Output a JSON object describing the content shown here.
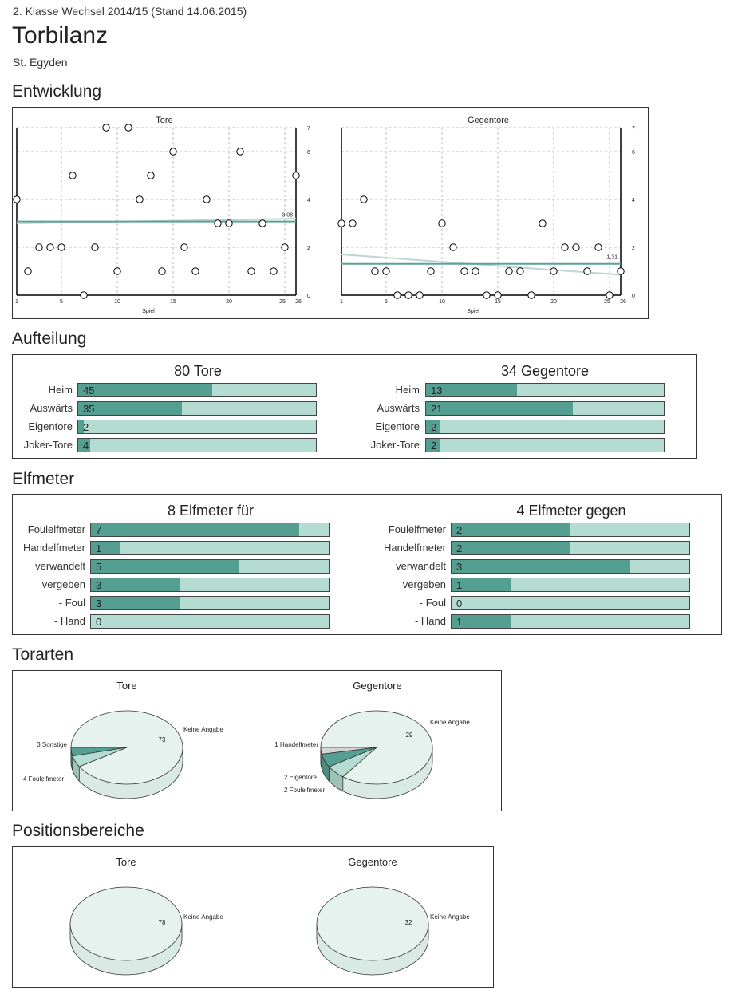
{
  "header": {
    "subtitle": "2. Klasse Wechsel 2014/15 (Stand 14.06.2015)",
    "title": "Torbilanz",
    "team": "St. Egyden"
  },
  "sections": {
    "entwicklung": "Entwicklung",
    "aufteilung": "Aufteilung",
    "elfmeter": "Elfmeter",
    "torarten": "Torarten",
    "positionsbereiche": "Positionsbereiche"
  },
  "colors": {
    "bar_fill": "#559e92",
    "bar_bg": "#b4dcd3",
    "pie_main": "#e6f2ee",
    "pie_dark": "#559e92",
    "pie_light": "#b4dcd3",
    "trend": "#5aa394",
    "regression": "#c0d4cf"
  },
  "chart_data": [
    {
      "type": "scatter",
      "id": "tore",
      "title": "Tore",
      "xlabel": "Spiel",
      "x_ticks": [
        "1",
        "5",
        "10",
        "15",
        "20",
        "25",
        "26"
      ],
      "y_ticks": [
        "0",
        "2",
        "4",
        "6",
        "7"
      ],
      "xlim": [
        1,
        26
      ],
      "ylim": [
        0,
        7
      ],
      "x": [
        1,
        2,
        3,
        4,
        5,
        6,
        7,
        8,
        9,
        10,
        11,
        12,
        13,
        14,
        15,
        16,
        17,
        18,
        19,
        20,
        21,
        22,
        23,
        24,
        25,
        26
      ],
      "values": [
        4,
        1,
        2,
        2,
        2,
        5,
        0,
        2,
        7,
        1,
        7,
        4,
        5,
        1,
        6,
        2,
        1,
        4,
        3,
        3,
        6,
        1,
        3,
        1,
        2,
        5
      ],
      "average": 3.08,
      "average_label": "3,08",
      "regression": [
        3.0,
        3.2
      ]
    },
    {
      "type": "scatter",
      "id": "gegentore",
      "title": "Gegentore",
      "xlabel": "Spiel",
      "x_ticks": [
        "1",
        "5",
        "10",
        "15",
        "20",
        "25",
        "26"
      ],
      "y_ticks": [
        "0",
        "2",
        "4",
        "6",
        "7"
      ],
      "xlim": [
        1,
        26
      ],
      "ylim": [
        0,
        7
      ],
      "x": [
        1,
        2,
        3,
        4,
        5,
        6,
        7,
        8,
        9,
        10,
        11,
        12,
        13,
        14,
        15,
        16,
        17,
        18,
        19,
        20,
        21,
        22,
        23,
        24,
        25,
        26
      ],
      "values": [
        3,
        3,
        4,
        1,
        1,
        0,
        0,
        0,
        1,
        3,
        2,
        1,
        1,
        0,
        0,
        1,
        1,
        0,
        3,
        1,
        2,
        2,
        1,
        2,
        0,
        1
      ],
      "average": 1.31,
      "average_label": "1,31",
      "regression": [
        1.7,
        0.85
      ]
    },
    {
      "type": "bar",
      "id": "tore-aufteilung",
      "title": "80 Tore",
      "categories": [
        "Heim",
        "Auswärts",
        "Eigentore",
        "Joker-Tore"
      ],
      "values": [
        45,
        35,
        2,
        4
      ],
      "max": 80
    },
    {
      "type": "bar",
      "id": "gegentore-aufteilung",
      "title": "34 Gegentore",
      "categories": [
        "Heim",
        "Auswärts",
        "Eigentore",
        "Joker-Tore"
      ],
      "values": [
        13,
        21,
        2,
        2
      ],
      "max": 34
    },
    {
      "type": "bar",
      "id": "elfmeter-fuer",
      "title": "8 Elfmeter für",
      "categories": [
        "Foulelfmeter",
        "Handelfmeter",
        "verwandelt",
        "vergeben",
        "- Foul",
        "- Hand"
      ],
      "values": [
        7,
        1,
        5,
        3,
        3,
        0
      ],
      "max": 8
    },
    {
      "type": "bar",
      "id": "elfmeter-gegen",
      "title": "4 Elfmeter gegen",
      "categories": [
        "Foulelfmeter",
        "Handelfmeter",
        "verwandelt",
        "vergeben",
        "- Foul",
        "- Hand"
      ],
      "values": [
        2,
        2,
        3,
        1,
        0,
        1
      ],
      "max": 4
    },
    {
      "type": "pie",
      "id": "torarten-tore",
      "title": "Tore",
      "slices": [
        {
          "label": "Keine Angabe",
          "value": 73,
          "color": "#e6f2ee"
        },
        {
          "label": "3 Sonstige",
          "value": 3,
          "color": "#559e92"
        },
        {
          "label": "4 Foulelfmeter",
          "value": 4,
          "color": "#b4dcd3"
        }
      ]
    },
    {
      "type": "pie",
      "id": "torarten-gegentore",
      "title": "Gegentore",
      "slices": [
        {
          "label": "Keine Angabe",
          "value": 29,
          "color": "#e6f2ee"
        },
        {
          "label": "1 Handelfmeter",
          "value": 1,
          "color": "#d4d4d4"
        },
        {
          "label": "2 Eigentore",
          "value": 2,
          "color": "#559e92"
        },
        {
          "label": "2 Foulelfmeter",
          "value": 2,
          "color": "#b4dcd3"
        }
      ]
    },
    {
      "type": "pie",
      "id": "positionen-tore",
      "title": "Tore",
      "slices": [
        {
          "label": "Keine Angabe",
          "value": 78,
          "color": "#e6f2ee"
        }
      ]
    },
    {
      "type": "pie",
      "id": "positionen-gegentore",
      "title": "Gegentore",
      "slices": [
        {
          "label": "Keine Angabe",
          "value": 32,
          "color": "#e6f2ee"
        }
      ]
    }
  ]
}
